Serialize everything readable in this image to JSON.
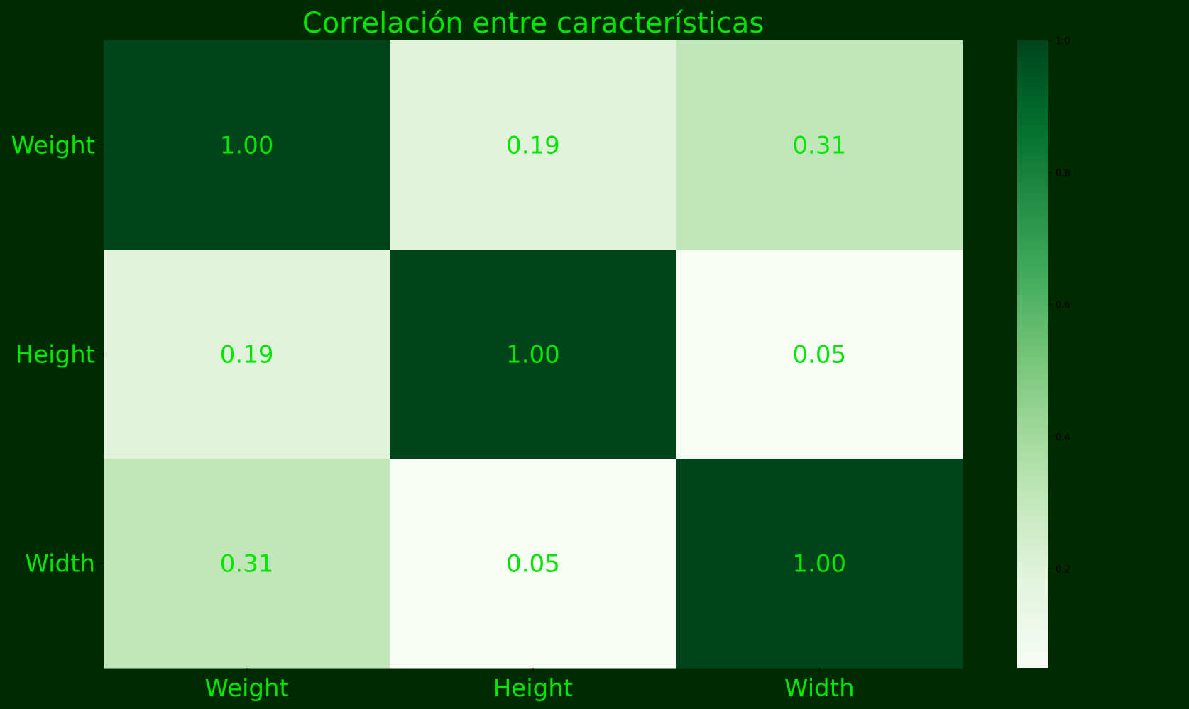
{
  "colors": {
    "background": "#002b00",
    "text": "#00e600",
    "colorbar_ticks": "#000000"
  },
  "chart_data": {
    "type": "heatmap",
    "title": "Correlación entre características",
    "xlabels": [
      "Weight",
      "Height",
      "Width"
    ],
    "ylabels": [
      "Weight",
      "Height",
      "Width"
    ],
    "values": [
      [
        1.0,
        0.19,
        0.31
      ],
      [
        0.19,
        1.0,
        0.05
      ],
      [
        0.31,
        0.05,
        1.0
      ]
    ],
    "cell_labels": [
      [
        "1.00",
        "0.19",
        "0.31"
      ],
      [
        "0.19",
        "1.00",
        "0.05"
      ],
      [
        "0.31",
        "0.05",
        "1.00"
      ]
    ],
    "colormap": "Greens",
    "colorbar": {
      "range": [
        0.05,
        1.0
      ],
      "ticks": [
        0.2,
        0.4,
        0.6,
        0.8,
        1.0
      ],
      "tick_labels": [
        "0.2",
        "0.4",
        "0.6",
        "0.8",
        "1.0"
      ]
    }
  }
}
